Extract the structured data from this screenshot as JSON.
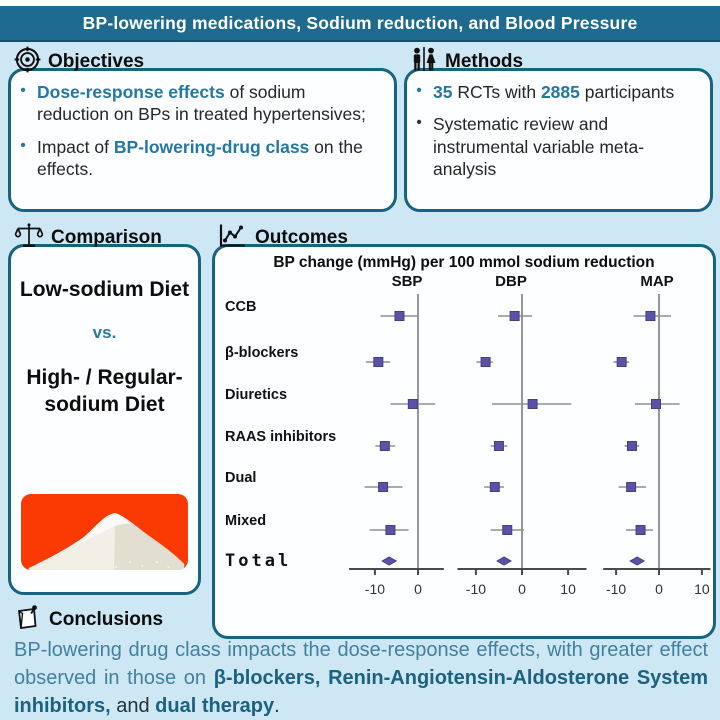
{
  "header": {
    "title": "BP-lowering medications, Sodium reduction, and Blood Pressure"
  },
  "colors": {
    "background": "#cde8f4",
    "header_bg": "#1e6b8f",
    "box_border": "#16647f",
    "accent": "#2578a3",
    "salt_red": "#fa3a02"
  },
  "icons": {
    "objectives": "target-icon",
    "methods": "people-icon",
    "comparison": "balance-scale-icon",
    "outcomes": "line-chart-icon",
    "conclusions": "note-pin-icon"
  },
  "objectives": {
    "heading": "Objectives",
    "bullets": [
      {
        "dot": "accent",
        "segments": [
          {
            "text": "Dose-response effects",
            "style": "accent"
          },
          {
            "text": " of sodium reduction on BPs in treated hypertensives;",
            "style": "plain"
          }
        ]
      },
      {
        "dot": "accent",
        "segments": [
          {
            "text": "Impact of ",
            "style": "plain"
          },
          {
            "text": "BP-lowering-drug class",
            "style": "accent"
          },
          {
            "text": " on the effects.",
            "style": "plain"
          }
        ]
      }
    ]
  },
  "methods": {
    "heading": "Methods",
    "bullets": [
      {
        "dot": "accent",
        "segments": [
          {
            "text": "35",
            "style": "accent"
          },
          {
            "text": " RCTs with ",
            "style": "plain"
          },
          {
            "text": "2885",
            "style": "accent"
          },
          {
            "text": " participants",
            "style": "plain"
          }
        ]
      },
      {
        "dot": "plain",
        "segments": [
          {
            "text": "Systematic review and instrumental variable meta-analysis",
            "style": "plain"
          }
        ]
      }
    ]
  },
  "comparison": {
    "heading": "Comparison",
    "option_a": "Low-sodium Diet",
    "versus": "vs.",
    "option_b": "High- / Regular-sodium Diet",
    "image": "salt-pile-photo"
  },
  "outcomes": {
    "heading": "Outcomes"
  },
  "conclusions": {
    "heading": "Conclusions",
    "segments": [
      {
        "text": "BP-lowering drug class impacts the dose-response effects, with greater effect observed in those on ",
        "style": "teal"
      },
      {
        "text": "β-blockers, Renin-Angiotensin-Aldosterone System inhibitors,",
        "style": "teal-strong"
      },
      {
        "text": " and ",
        "style": "dark"
      },
      {
        "text": "dual therapy",
        "style": "teal-strong"
      },
      {
        "text": ".",
        "style": "dark"
      }
    ]
  },
  "chart_data": {
    "type": "forest",
    "title": "BP change (mmHg) per 100 mmol sodium reduction",
    "xlabel": "BP change (mmHg)",
    "columns": [
      {
        "label": "SBP",
        "axis_range": [
          -16,
          6
        ],
        "ticks": [
          -10,
          0
        ]
      },
      {
        "label": "DBP",
        "axis_range": [
          -14,
          14
        ],
        "ticks": [
          -10,
          0,
          10
        ]
      },
      {
        "label": "MAP",
        "axis_range": [
          -13,
          12
        ],
        "ticks": [
          -10,
          0,
          10
        ]
      }
    ],
    "rows": [
      {
        "label": "CCB",
        "marker": "square",
        "values": {
          "SBP": {
            "est": -4.3,
            "ci": [
              -8.7,
              0.2
            ]
          },
          "DBP": {
            "est": -1.6,
            "ci": [
              -5.2,
              2.2
            ]
          },
          "MAP": {
            "est": -2.0,
            "ci": [
              -5.9,
              2.8
            ]
          }
        }
      },
      {
        "label": "β-blockers",
        "marker": "square",
        "values": {
          "SBP": {
            "est": -9.2,
            "ci": [
              -12.1,
              -6.5
            ]
          },
          "DBP": {
            "est": -7.9,
            "ci": [
              -9.9,
              -6.3
            ]
          },
          "MAP": {
            "est": -8.7,
            "ci": [
              -10.6,
              -7.0
            ]
          }
        }
      },
      {
        "label": "Diuretics",
        "marker": "square",
        "values": {
          "SBP": {
            "est": -1.2,
            "ci": [
              -6.4,
              4.0
            ]
          },
          "DBP": {
            "est": 2.3,
            "ci": [
              -6.5,
              10.7
            ]
          },
          "MAP": {
            "est": -0.7,
            "ci": [
              -5.6,
              4.8
            ]
          }
        }
      },
      {
        "label": "RAAS inhibitors",
        "marker": "square",
        "values": {
          "SBP": {
            "est": -7.7,
            "ci": [
              -9.9,
              -5.3
            ]
          },
          "DBP": {
            "est": -5.0,
            "ci": [
              -6.8,
              -3.2
            ]
          },
          "MAP": {
            "est": -6.3,
            "ci": [
              -8.0,
              -4.6
            ]
          }
        }
      },
      {
        "label": "Dual",
        "marker": "square",
        "values": {
          "SBP": {
            "est": -8.1,
            "ci": [
              -12.4,
              -3.6
            ]
          },
          "DBP": {
            "est": -5.9,
            "ci": [
              -8.2,
              -3.9
            ]
          },
          "MAP": {
            "est": -6.5,
            "ci": [
              -9.4,
              -3.0
            ]
          }
        }
      },
      {
        "label": "Mixed",
        "marker": "square",
        "values": {
          "SBP": {
            "est": -6.4,
            "ci": [
              -11.2,
              -2.2
            ]
          },
          "DBP": {
            "est": -3.2,
            "ci": [
              -6.8,
              0.4
            ]
          },
          "MAP": {
            "est": -4.3,
            "ci": [
              -7.7,
              -1.4
            ]
          }
        }
      },
      {
        "label": "Total",
        "marker": "diamond",
        "label_color": "#d63a2c",
        "values": {
          "SBP": {
            "est": -6.7,
            "ci": [
              -8.2,
              -5.0
            ]
          },
          "DBP": {
            "est": -3.9,
            "ci": [
              -5.1,
              -2.7
            ]
          },
          "MAP": {
            "est": -5.1,
            "ci": [
              -6.4,
              -3.8
            ]
          }
        }
      }
    ],
    "colors": {
      "marker": "#5a52a4",
      "marker_edge": "#453e8c",
      "ci_line": "#8f8f8f",
      "zero_line": "#7d7d7d",
      "axis": "#4a4a4a",
      "total_label": "#d63a2c"
    },
    "legend_position": "none",
    "grid": false
  }
}
